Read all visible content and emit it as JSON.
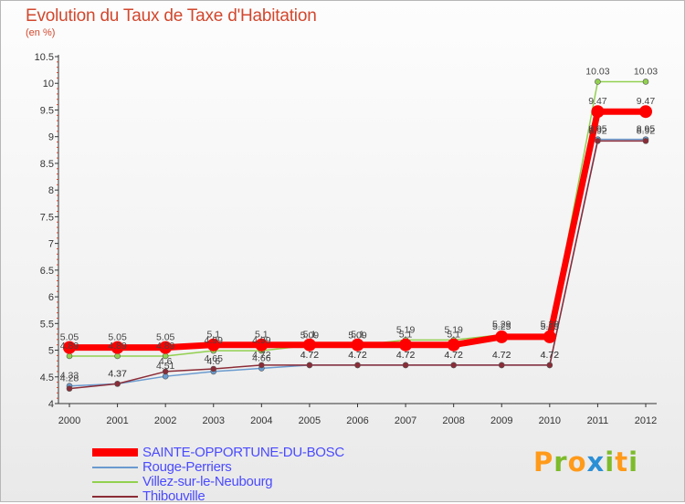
{
  "header": {
    "title": "Evolution du Taux de Taxe d'Habitation",
    "subtitle": "(en %)"
  },
  "logo": {
    "text": "Proxiti",
    "letters": [
      "P",
      "r",
      "o",
      "x",
      "i",
      "t",
      "i"
    ],
    "colors": [
      "#ff9a1a",
      "#7dbb2a",
      "#ff9a1a",
      "#2b8fd6",
      "#7dbb2a",
      "#ff9a1a",
      "#7dbb2a"
    ]
  },
  "chart_data": {
    "type": "line",
    "title": "Evolution du Taux de Taxe d'Habitation",
    "ylabel": "(en %)",
    "xlabel": "",
    "ylim": [
      4,
      10.5
    ],
    "yticks": [
      "4",
      "4.5",
      "5",
      "5.5",
      "6",
      "6.5",
      "7",
      "7.5",
      "8",
      "8.5",
      "9",
      "9.5",
      "10",
      "10.5"
    ],
    "categories": [
      "2000",
      "2001",
      "2002",
      "2003",
      "2004",
      "2005",
      "2006",
      "2007",
      "2008",
      "2009",
      "2010",
      "2011",
      "2012"
    ],
    "grid": false,
    "legend_position": "bottom-left",
    "series": [
      {
        "name": "Rouge-Perriers",
        "color": "#6a9bcf",
        "values": [
          4.33,
          4.37,
          4.51,
          4.6,
          4.66,
          4.72,
          4.72,
          4.72,
          4.72,
          4.72,
          4.72,
          8.95,
          8.95
        ],
        "labels": [
          "4.33",
          "4.37",
          "4.51",
          "4.6",
          "4.66",
          "4.72",
          "4.72",
          "4.72",
          "4.72",
          "4.72",
          "4.72",
          "8.95",
          "8.95"
        ]
      },
      {
        "name": "Villez-sur-le-Neubourg",
        "color": "#92d050",
        "values": [
          4.89,
          4.89,
          4.89,
          4.99,
          4.99,
          5.09,
          5.09,
          5.19,
          5.19,
          5.29,
          5.29,
          10.03,
          10.03
        ],
        "labels": [
          "4.89",
          "4.89",
          "4.89",
          "4.99",
          "4.99",
          "5.09",
          "5.09",
          "5.19",
          "5.19",
          "5.29",
          "5.29",
          "10.03",
          "10.03"
        ]
      },
      {
        "name": "Thibouville",
        "color": "#8b2c37",
        "values": [
          4.28,
          4.37,
          4.6,
          4.65,
          4.72,
          4.72,
          4.72,
          4.72,
          4.72,
          4.72,
          4.72,
          8.92,
          8.92
        ],
        "labels": [
          "4.28",
          "4.37",
          "4.6",
          "4.65",
          "4.72",
          "4.72",
          "4.72",
          "4.72",
          "4.72",
          "4.72",
          "4.72",
          "8.92",
          "8.92"
        ]
      },
      {
        "name": "SAINTE-OPPORTUNE-DU-BOSC",
        "color": "#ff0000",
        "values": [
          5.05,
          5.05,
          5.05,
          5.1,
          5.1,
          5.1,
          5.1,
          5.1,
          5.1,
          5.25,
          5.25,
          9.47,
          9.47
        ],
        "labels": [
          "5.05",
          "5.05",
          "5.05",
          "5.1",
          "5.1",
          "5.1",
          "5.1",
          "5.1",
          "5.1",
          "5.25",
          "5.25",
          "9.47",
          "9.47"
        ]
      }
    ],
    "legend": [
      "SAINTE-OPPORTUNE-DU-BOSC",
      "Rouge-Perriers",
      "Villez-sur-le-Neubourg",
      "Thibouville"
    ]
  }
}
